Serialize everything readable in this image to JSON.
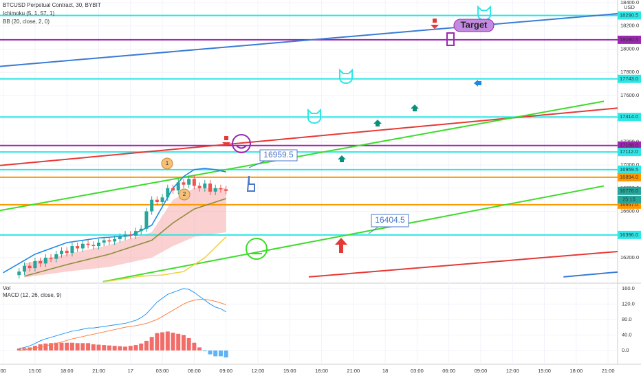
{
  "chart_data": {
    "type": "candlestick",
    "title": "BTCUSD Perpetual Contract, 30, BYBIT",
    "indicator_labels": [
      "Ichimoku (5, 1, 57, 1)",
      "BB (20, close, 2, 0)"
    ],
    "currency": "USD",
    "xlim": [
      -0.3,
      57.9
    ],
    "xticks": [
      {
        "value": 0,
        "label": "00"
      },
      {
        "value": 3,
        "label": "15:00"
      },
      {
        "value": 6,
        "label": "18:00"
      },
      {
        "value": 9,
        "label": "21:00"
      },
      {
        "value": 12,
        "label": "17"
      },
      {
        "value": 15,
        "label": "03:00"
      },
      {
        "value": 18,
        "label": "06:00"
      },
      {
        "value": 21,
        "label": "09:00"
      },
      {
        "value": 24,
        "label": "12:00"
      },
      {
        "value": 27,
        "label": "15:00"
      },
      {
        "value": 30,
        "label": "18:00"
      },
      {
        "value": 33,
        "label": "21:00"
      },
      {
        "value": 36,
        "label": "18"
      },
      {
        "value": 39,
        "label": "03:00"
      },
      {
        "value": 42,
        "label": "06:00"
      },
      {
        "value": 45,
        "label": "09:00"
      },
      {
        "value": 48,
        "label": "12:00"
      },
      {
        "value": 51,
        "label": "15:00"
      },
      {
        "value": 54,
        "label": "18:00"
      },
      {
        "value": 57,
        "label": "21:00"
      }
    ],
    "ylim": [
      15980,
      18424
    ],
    "yticks": [
      {
        "value": 16200,
        "label": "16200.0"
      },
      {
        "value": 16400,
        "label": "16400.0"
      },
      {
        "value": 16600,
        "label": "16600.0"
      },
      {
        "value": 16800,
        "label": "16800.0"
      },
      {
        "value": 17000,
        "label": "17000.0"
      },
      {
        "value": 17200,
        "label": "17200.0"
      },
      {
        "value": 17400,
        "label": "17400.0"
      },
      {
        "value": 17600,
        "label": "17600.0"
      },
      {
        "value": 17800,
        "label": "17800.0"
      },
      {
        "value": 18000,
        "label": "18000.0"
      },
      {
        "value": 18200,
        "label": "18200.0"
      },
      {
        "value": 18400,
        "label": "18400.0"
      }
    ],
    "up_color": "#26a69a",
    "down_color": "#ef5350",
    "x": [
      1.5,
      2,
      2.5,
      3,
      3.5,
      4,
      4.5,
      5,
      5.5,
      6,
      6.5,
      7,
      7.5,
      8,
      8.5,
      9,
      9.5,
      10,
      10.5,
      11,
      11.5,
      12,
      12.5,
      13,
      13.5,
      14,
      14.5,
      15,
      15.5,
      16,
      16.5,
      17,
      17.5,
      18,
      18.5,
      19,
      19.5,
      20,
      20.5,
      21
    ],
    "open": [
      16050,
      16080,
      16130,
      16110,
      16170,
      16150,
      16200,
      16190,
      16230,
      16260,
      16240,
      16300,
      16280,
      16320,
      16310,
      16300,
      16330,
      16350,
      16340,
      16360,
      16380,
      16400,
      16390,
      16430,
      16450,
      16600,
      16700,
      16680,
      16720,
      16800,
      16780,
      16850,
      16830,
      16880,
      16820,
      16800,
      16840,
      16770,
      16800,
      16790
    ],
    "high": [
      16110,
      16160,
      16160,
      16200,
      16200,
      16230,
      16230,
      16260,
      16290,
      16290,
      16330,
      16330,
      16350,
      16350,
      16340,
      16360,
      16380,
      16380,
      16390,
      16410,
      16430,
      16430,
      16460,
      16480,
      16630,
      16730,
      16730,
      16750,
      16830,
      16830,
      16880,
      16880,
      16910,
      16910,
      16850,
      16870,
      16870,
      16830,
      16830,
      16820
    ],
    "low": [
      16020,
      16050,
      16080,
      16080,
      16120,
      16120,
      16160,
      16160,
      16200,
      16210,
      16210,
      16250,
      16250,
      16280,
      16270,
      16270,
      16300,
      16310,
      16310,
      16330,
      16350,
      16360,
      16360,
      16400,
      16420,
      16570,
      16650,
      16650,
      16690,
      16750,
      16750,
      16800,
      16800,
      16790,
      16770,
      16770,
      16740,
      16740,
      16760,
      16746
    ],
    "close": [
      16080,
      16130,
      16110,
      16170,
      16150,
      16200,
      16190,
      16230,
      16260,
      16240,
      16300,
      16280,
      16320,
      16310,
      16300,
      16330,
      16350,
      16340,
      16360,
      16380,
      16400,
      16390,
      16430,
      16450,
      16600,
      16700,
      16680,
      16720,
      16800,
      16780,
      16850,
      16830,
      16880,
      16820,
      16800,
      16840,
      16770,
      16800,
      16790,
      16776
    ],
    "cloud": {
      "color": "#f5a9a9",
      "x": [
        2,
        6,
        10,
        14,
        16,
        18,
        21
      ],
      "upper": [
        16150,
        16230,
        16310,
        16420,
        16700,
        16800,
        16800
      ],
      "lower": [
        16030,
        16080,
        16120,
        16200,
        16300,
        16380,
        16420
      ]
    },
    "indicator_lines": [
      {
        "color": "#1e88e5",
        "x": [
          0,
          3,
          6,
          9,
          12,
          14,
          15,
          16,
          17,
          18,
          19,
          20,
          21
        ],
        "values": [
          16070,
          16230,
          16330,
          16370,
          16390,
          16480,
          16640,
          16800,
          16900,
          16960,
          16970,
          16960,
          16940
        ]
      },
      {
        "color": "#8d8d3a",
        "x": [
          2,
          6,
          10,
          14,
          16,
          18,
          21
        ],
        "values": [
          16040,
          16140,
          16230,
          16350,
          16500,
          16620,
          16710
        ]
      },
      {
        "color": "#f5d142",
        "x": [
          9.4,
          13,
          15,
          17,
          19,
          21
        ],
        "values": [
          15990,
          16040,
          16050,
          16080,
          16200,
          16380
        ]
      }
    ],
    "levels": [
      {
        "value": 18290.5,
        "label": "18290.5",
        "color": "#2ee6e6"
      },
      {
        "value": 18080.5,
        "label": "18080.5",
        "color": "#9c27b0"
      },
      {
        "value": 17743.0,
        "label": "17743.0",
        "color": "#2ee6e6"
      },
      {
        "value": 17414.0,
        "label": "17414.0",
        "color": "#2ee6e6"
      },
      {
        "value": 17168.0,
        "label": "17168.0",
        "color": "#9c27b0"
      },
      {
        "value": 17112.0,
        "label": "17112.0",
        "color": "#2ee6e6"
      },
      {
        "value": 16959.5,
        "label": "16959.5",
        "color": "#2ee6e6"
      },
      {
        "value": 16894.0,
        "label": "16894.0",
        "color": "#ff9800"
      },
      {
        "value": 16657.0,
        "label": "16657.0",
        "color": "#ff9800"
      },
      {
        "value": 16396.0,
        "label": "16396.0",
        "color": "#2ee6e6"
      }
    ],
    "last_price": {
      "value": 16776,
      "label": "16776.0",
      "color": "#26a69a"
    },
    "countdown": "25:15",
    "trend_lines": [
      {
        "color": "#3a7bd5",
        "x": [
          -0.3,
          57.9
        ],
        "values": [
          17851,
          18306
        ]
      },
      {
        "color": "#e53935",
        "x": [
          -0.3,
          57.9
        ],
        "values": [
          16996,
          17491
        ]
      },
      {
        "color": "#3ddc2a",
        "x": [
          -0.3,
          56.6
        ],
        "values": [
          16607,
          17550
        ]
      },
      {
        "color": "#3ddc2a",
        "x": [
          9.4,
          56.6
        ],
        "values": [
          15993,
          16819
        ]
      },
      {
        "color": "#e53935",
        "x": [
          28.8,
          57.9
        ],
        "values": [
          16034,
          16253
        ]
      },
      {
        "color": "#3a7bd5",
        "x": [
          52.8,
          57.9
        ],
        "values": [
          16034,
          16076
        ]
      }
    ],
    "callouts": [
      "16959.5",
      "16404.5",
      "Target"
    ],
    "badges": [
      "1",
      "2"
    ],
    "macd": {
      "labels": [
        "Vol",
        "MACD (12, 26, close, 9)"
      ],
      "y2lim": [
        -35.6,
        174
      ],
      "y2ticks": [
        {
          "value": 0,
          "label": "0.0"
        },
        {
          "value": 40,
          "label": "40.0"
        },
        {
          "value": 80,
          "label": "80.0"
        },
        {
          "value": 120,
          "label": "120.0"
        },
        {
          "value": 160,
          "label": "160.0"
        }
      ],
      "macd_color": "#2196f3",
      "signal_color": "#ff7f3f",
      "positive_color": "#ef5350",
      "negative_color": "#42a5f5",
      "macd": [
        5,
        8,
        12,
        18,
        25,
        30,
        34,
        38,
        42,
        46,
        50,
        52,
        55,
        58,
        58,
        60,
        62,
        64,
        66,
        68,
        70,
        74,
        78,
        85,
        95,
        110,
        125,
        135,
        145,
        150,
        155,
        160,
        158,
        150,
        140,
        130,
        120,
        112,
        108,
        100
      ],
      "signal": [
        0,
        2,
        4,
        6,
        9,
        12,
        15,
        18,
        22,
        26,
        30,
        33,
        36,
        39,
        42,
        45,
        48,
        51,
        54,
        57,
        60,
        62,
        64,
        67,
        70,
        75,
        80,
        88,
        96,
        104,
        112,
        120,
        126,
        130,
        132,
        132,
        130,
        127,
        123,
        118
      ],
      "hist": [
        5,
        6,
        8,
        12,
        16,
        18,
        19,
        20,
        20,
        20,
        20,
        19,
        19,
        19,
        16,
        15,
        14,
        13,
        12,
        11,
        10,
        12,
        14,
        18,
        25,
        35,
        45,
        47,
        49,
        46,
        43,
        40,
        32,
        20,
        8,
        -2,
        -10,
        -15,
        -15,
        -18
      ]
    }
  }
}
